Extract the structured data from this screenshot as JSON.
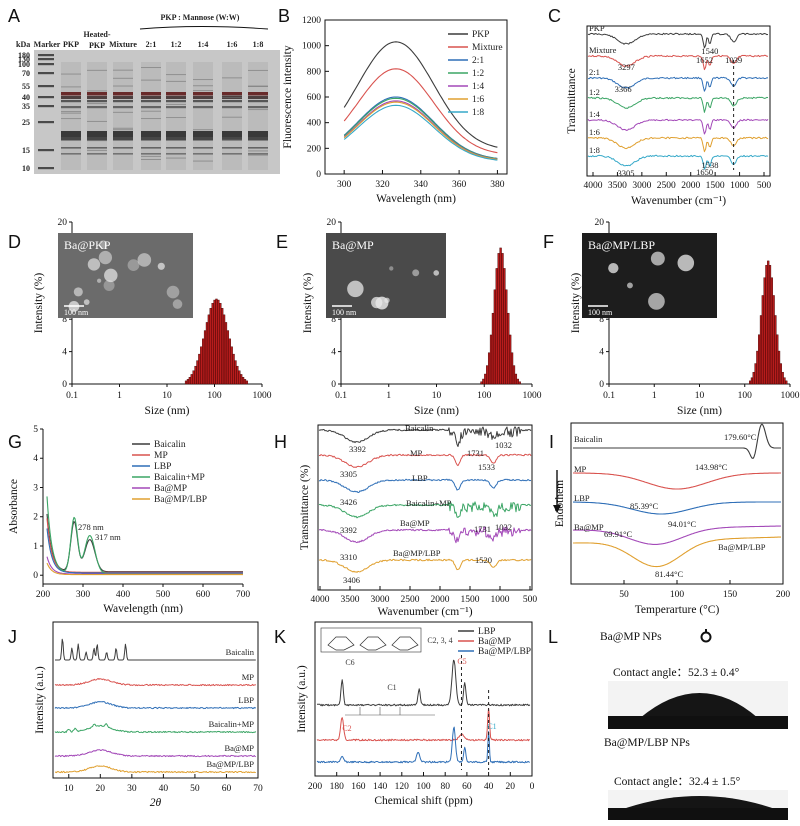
{
  "colors": {
    "black": "#3c3c3c",
    "red": "#d9534f",
    "blue": "#2f6fb7",
    "green": "#3ba565",
    "purple": "#a349b8",
    "orange": "#e0a030",
    "cyan": "#36a9c9",
    "bar": "#b71c1c"
  },
  "chart_data": [
    {
      "id": "A",
      "panel_label": "A",
      "type": "gel",
      "unit_label": "kDa",
      "marker_sizes": [
        "180",
        "130",
        "100",
        "70",
        "55",
        "40",
        "35",
        "25",
        "15",
        "10"
      ],
      "lanes": [
        "Marker",
        "PKP",
        "Heated-PKP",
        "Mixture",
        "2:1",
        "1:2",
        "1:4",
        "1:6",
        "1:8"
      ],
      "header": "PKP : Mannose (W:W)"
    },
    {
      "id": "B",
      "panel_label": "B",
      "type": "line",
      "xlabel": "Wavelength (nm)",
      "ylabel": "Fluorescence intensity",
      "xlim": [
        290,
        385
      ],
      "ylim": [
        0,
        1200
      ],
      "xticks": [
        "300",
        "320",
        "340",
        "360",
        "380"
      ],
      "yticks": [
        "0",
        "200",
        "400",
        "600",
        "800",
        "1000",
        "1200"
      ],
      "series": [
        {
          "name": "PKP",
          "peak": 1030,
          "color": "#3c3c3c"
        },
        {
          "name": "Mixture",
          "peak": 820,
          "color": "#d9534f"
        },
        {
          "name": "2:1",
          "peak": 600,
          "color": "#2f6fb7"
        },
        {
          "name": "1:2",
          "peak": 590,
          "color": "#3ba565"
        },
        {
          "name": "1:4",
          "peak": 570,
          "color": "#a349b8"
        },
        {
          "name": "1:6",
          "peak": 560,
          "color": "#e0a030"
        },
        {
          "name": "1:8",
          "peak": 535,
          "color": "#36a9c9"
        }
      ]
    },
    {
      "id": "C",
      "panel_label": "C",
      "type": "spectra",
      "xlabel": "Wavenumber (cm⁻¹)",
      "ylabel": "Transmittance",
      "xlim": [
        4000,
        400
      ],
      "xticks": [
        "4000",
        "3500",
        "3000",
        "2500",
        "2000",
        "1500",
        "1000",
        "500"
      ],
      "series": [
        {
          "name": "PKP",
          "color": "#3c3c3c"
        },
        {
          "name": "Mixture",
          "color": "#d9534f"
        },
        {
          "name": "2:1",
          "color": "#2f6fb7"
        },
        {
          "name": "1:2",
          "color": "#3ba565"
        },
        {
          "name": "1:4",
          "color": "#a349b8"
        },
        {
          "name": "1:6",
          "color": "#e0a030"
        },
        {
          "name": "1:8",
          "color": "#36a9c9"
        }
      ],
      "annotations": [
        "3297",
        "3366",
        "1652",
        "1540",
        "1039",
        "3305",
        "1650",
        "1538"
      ]
    },
    {
      "id": "D",
      "panel_label": "D",
      "type": "histogram",
      "inset_label": "Ba@PKP",
      "scale_label": "100 nm",
      "xlabel": "Size (nm)",
      "ylabel": "Intensity (%)",
      "xscale": "log",
      "xlim": [
        0.1,
        1000
      ],
      "ylim": [
        0,
        20
      ],
      "xticks": [
        "0.1",
        "1",
        "10",
        "100",
        "1000"
      ],
      "yticks": [
        "0",
        "4",
        "8",
        "12",
        "16",
        "20"
      ],
      "mode": 110,
      "peak": 10.5,
      "spread": 0.16
    },
    {
      "id": "E",
      "panel_label": "E",
      "type": "histogram",
      "inset_label": "Ba@MP",
      "scale_label": "100 nm",
      "xlabel": "Size (nm)",
      "ylabel": "Intensity (%)",
      "xscale": "log",
      "xlim": [
        0.1,
        1000
      ],
      "ylim": [
        0,
        20
      ],
      "xticks": [
        "0.1",
        "1",
        "10",
        "100",
        "1000"
      ],
      "yticks": [
        "0",
        "4",
        "8",
        "12",
        "16",
        "20"
      ],
      "mode": 220,
      "peak": 16.8,
      "spread": 0.09
    },
    {
      "id": "F",
      "panel_label": "F",
      "type": "histogram",
      "inset_label": "Ba@MP/LBP",
      "scale_label": "100 nm",
      "xlabel": "Size (nm)",
      "ylabel": "Intensity (%)",
      "xscale": "log",
      "xlim": [
        0.1,
        1000
      ],
      "ylim": [
        0,
        20
      ],
      "xticks": [
        "0.1",
        "1",
        "10",
        "100",
        "1000"
      ],
      "yticks": [
        "0",
        "4",
        "8",
        "12",
        "16",
        "20"
      ],
      "mode": 330,
      "peak": 15.2,
      "spread": 0.095
    },
    {
      "id": "G",
      "panel_label": "G",
      "type": "line",
      "xlabel": "Wavelength (nm)",
      "ylabel": "Absorbance",
      "xlim": [
        200,
        700
      ],
      "ylim": [
        -0.3,
        5
      ],
      "xticks": [
        "200",
        "300",
        "400",
        "500",
        "600",
        "700"
      ],
      "yticks": [
        "0",
        "1",
        "2",
        "3",
        "4",
        "5"
      ],
      "series": [
        {
          "name": "Baicalin",
          "color": "#3c3c3c"
        },
        {
          "name": "MP",
          "color": "#d9534f"
        },
        {
          "name": "LBP",
          "color": "#2f6fb7"
        },
        {
          "name": "Baicalin+MP",
          "color": "#3ba565"
        },
        {
          "name": "Ba@MP",
          "color": "#a349b8"
        },
        {
          "name": "Ba@MP/LBP",
          "color": "#e0a030"
        }
      ],
      "annotations": [
        "278 nm",
        "317 nm"
      ]
    },
    {
      "id": "H",
      "panel_label": "H",
      "type": "spectra",
      "xlabel": "Wavenumber (cm⁻¹)",
      "ylabel": "Transmittance (%)",
      "xlim": [
        4000,
        400
      ],
      "xticks": [
        "4000",
        "3500",
        "3000",
        "2500",
        "2000",
        "1500",
        "1000",
        "500"
      ],
      "series": [
        {
          "name": "Baicalin",
          "color": "#3c3c3c"
        },
        {
          "name": "MP",
          "color": "#d9534f"
        },
        {
          "name": "LBP",
          "color": "#2f6fb7"
        },
        {
          "name": "Baicalin+MP",
          "color": "#3ba565"
        },
        {
          "name": "Ba@MP",
          "color": "#a349b8"
        },
        {
          "name": "Ba@MP/LBP",
          "color": "#e0a030"
        }
      ],
      "annotations": [
        "3392",
        "1731",
        "1032",
        "1533",
        "3305",
        "3426",
        "3392",
        "1731",
        "1032",
        "3310",
        "1520",
        "3406"
      ]
    },
    {
      "id": "I",
      "panel_label": "I",
      "type": "dsc",
      "xlabel": "Temperarture (°C)",
      "ylabel": "Endothem",
      "xlim": [
        0,
        200
      ],
      "xticks": [
        "50",
        "100",
        "150",
        "200"
      ],
      "series": [
        {
          "name": "Baicalin",
          "color": "#3c3c3c"
        },
        {
          "name": "MP",
          "color": "#d9534f"
        },
        {
          "name": "LBP",
          "color": "#2f6fb7"
        },
        {
          "name": "Ba@MP",
          "color": "#a349b8"
        },
        {
          "name": "Ba@MP/LBP",
          "color": "#e0a030"
        }
      ],
      "annotations": [
        "179.60°C",
        "143.98°C",
        "85.39°C",
        "94.01°C",
        "69.91°C",
        "81.44°C"
      ]
    },
    {
      "id": "J",
      "panel_label": "J",
      "type": "xrd",
      "xlabel": "2θ",
      "ylabel": "Intensity (a.u.)",
      "xlim": [
        5,
        70
      ],
      "xticks": [
        "10",
        "20",
        "30",
        "40",
        "50",
        "60",
        "70"
      ],
      "series": [
        {
          "name": "Baicalin",
          "color": "#3c3c3c"
        },
        {
          "name": "MP",
          "color": "#d9534f"
        },
        {
          "name": "LBP",
          "color": "#2f6fb7"
        },
        {
          "name": "Baicalin+MP",
          "color": "#3ba565"
        },
        {
          "name": "Ba@MP",
          "color": "#a349b8"
        },
        {
          "name": "Ba@MP/LBP",
          "color": "#e0a030"
        }
      ]
    },
    {
      "id": "K",
      "panel_label": "K",
      "type": "nmr",
      "xlabel": "Chemical shift (ppm)",
      "ylabel": "Intensity (a.u.)",
      "xlim": [
        200,
        0
      ],
      "xticks": [
        "200",
        "180",
        "160",
        "140",
        "120",
        "100",
        "80",
        "60",
        "40",
        "20",
        "0"
      ],
      "series": [
        {
          "name": "LBP",
          "color": "#3c3c3c"
        },
        {
          "name": "Ba@MP",
          "color": "#d9534f"
        },
        {
          "name": "Ba@MP/LBP",
          "color": "#2f6fb7"
        }
      ],
      "annotations": [
        "C6",
        "C1",
        "C2, 3, 4",
        "C5",
        "C2",
        "C1"
      ]
    },
    {
      "id": "L",
      "panel_label": "L",
      "type": "contact-angle",
      "samples": [
        {
          "name": "Ba@MP NPs",
          "angle": "Contact angle：52.3 ± 0.4°"
        },
        {
          "name": "Ba@MP/LBP NPs",
          "angle": "Contact angle：32.4 ± 1.5°"
        }
      ]
    }
  ]
}
